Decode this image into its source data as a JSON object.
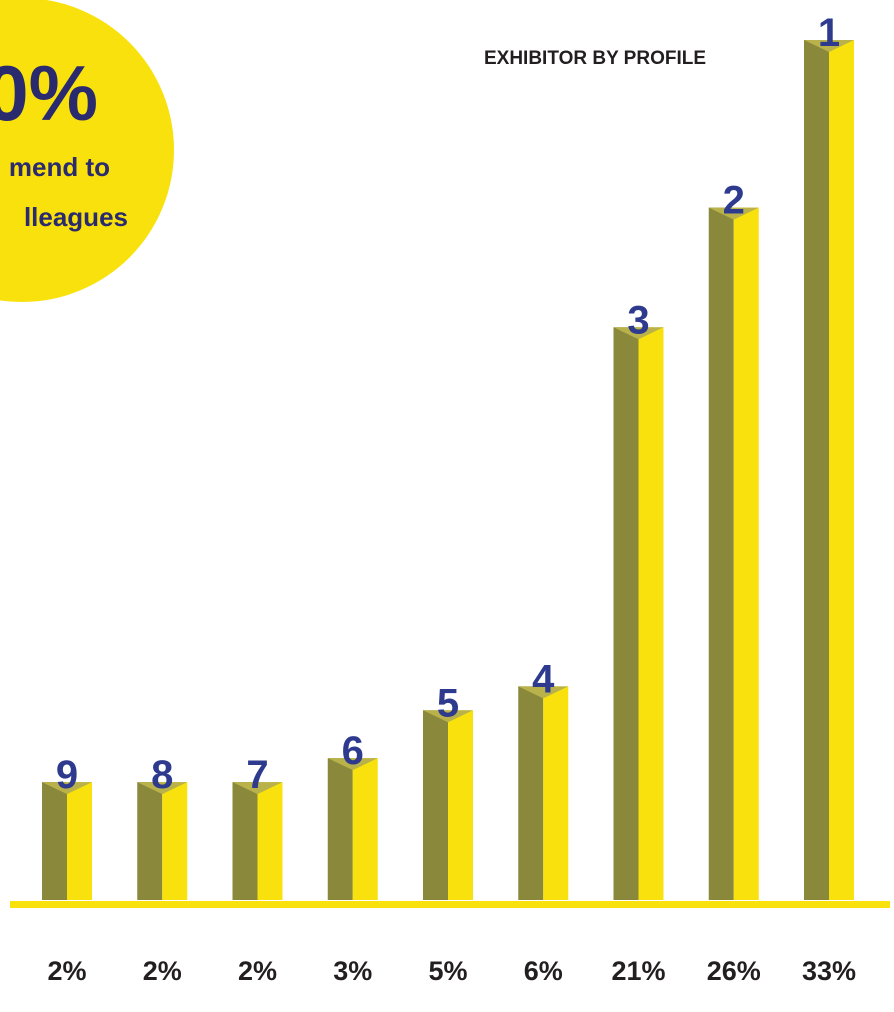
{
  "chart_data": {
    "type": "bar",
    "title": "EXHIBITOR BY PROFILE",
    "badge": {
      "value_text": "0%",
      "lines": [
        "mend to",
        "lleagues"
      ]
    },
    "ranks": [
      9,
      8,
      7,
      6,
      5,
      4,
      3,
      2,
      1
    ],
    "values": [
      2,
      2,
      2,
      3,
      5,
      6,
      21,
      26,
      33
    ],
    "value_labels": [
      "2%",
      "2%",
      "2%",
      "3%",
      "5%",
      "6%",
      "21%",
      "26%",
      "33%"
    ],
    "colors": {
      "dark": "#8a883a",
      "light": "#f8e10c",
      "rank": "#2d3a8e",
      "label": "#231f20"
    }
  }
}
